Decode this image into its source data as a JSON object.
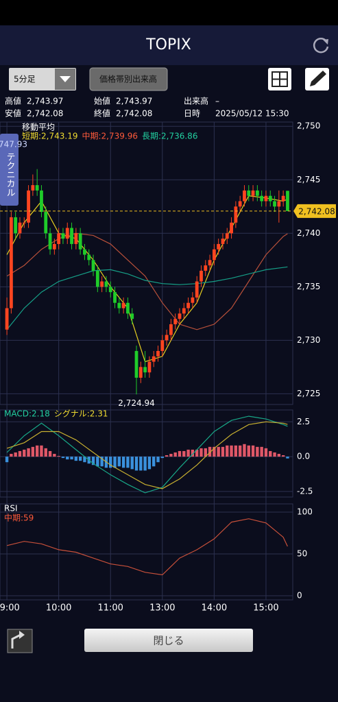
{
  "header": {
    "title": "TOPIX"
  },
  "toolbar": {
    "period": "5分足",
    "volume_button": "価格帯別出来高"
  },
  "info": [
    {
      "label": "高値",
      "value": "2,743.97"
    },
    {
      "label": "始値",
      "value": "2,743.97"
    },
    {
      "label": "出来高",
      "value": "–"
    },
    {
      "label": "安値",
      "value": "2,742.08"
    },
    {
      "label": "終値",
      "value": "2,742.08"
    },
    {
      "label": "日時",
      "value": "2025/05/12 15:30"
    }
  ],
  "side_tab": {
    "label": "テクニカル",
    "partial_value": "747.93"
  },
  "footer": {
    "close_button": "閉じる"
  },
  "chart_data": [
    {
      "type": "candlestick",
      "title": "移動平均",
      "xlim": [
        -1.6,
        66.2
      ],
      "ylim": [
        2724,
        2750.4
      ],
      "yticks": [
        {
          "value": 2725,
          "label": "2,725"
        },
        {
          "value": 2730,
          "label": "2,730"
        },
        {
          "value": 2735,
          "label": "2,735"
        },
        {
          "value": 2740,
          "label": "2,740"
        },
        {
          "value": 2745,
          "label": "2,745"
        },
        {
          "value": 2750,
          "label": "2,750"
        }
      ],
      "up_color": "#ff4520",
      "down_color": "#1fcc2a",
      "candles": [
        [
          2731,
          2734,
          2730.5,
          2733
        ],
        [
          2733,
          2742,
          2732.5,
          2741.5
        ],
        [
          2741.5,
          2742,
          2739.5,
          2740
        ],
        [
          2740,
          2741.5,
          2739.5,
          2741
        ],
        [
          2741,
          2741.5,
          2740.5,
          2741
        ],
        [
          2741,
          2744.5,
          2740.5,
          2744
        ],
        [
          2744,
          2745.5,
          2743.5,
          2744.5
        ],
        [
          2744.5,
          2746,
          2743.5,
          2744
        ],
        [
          2744,
          2744.5,
          2741.5,
          2742
        ],
        [
          2742,
          2742.5,
          2739.5,
          2740
        ],
        [
          2740,
          2740.5,
          2738,
          2738.5
        ],
        [
          2738.5,
          2739.5,
          2738,
          2739
        ],
        [
          2739,
          2740.5,
          2738.5,
          2740
        ],
        [
          2740,
          2740.5,
          2739,
          2739.5
        ],
        [
          2739.5,
          2741,
          2739,
          2740.5
        ],
        [
          2740.5,
          2741,
          2738.5,
          2739
        ],
        [
          2739,
          2740.5,
          2738.5,
          2740
        ],
        [
          2740,
          2740.5,
          2738,
          2738.5
        ],
        [
          2738.5,
          2739,
          2737.5,
          2738
        ],
        [
          2738,
          2738.5,
          2737,
          2737.5
        ],
        [
          2737.5,
          2738,
          2736,
          2736.5
        ],
        [
          2736.5,
          2737,
          2734.5,
          2735
        ],
        [
          2735,
          2736,
          2734.5,
          2735.5
        ],
        [
          2735.5,
          2736,
          2734.5,
          2735
        ],
        [
          2735,
          2735.5,
          2734,
          2734.5
        ],
        [
          2734.5,
          2735,
          2733,
          2733.5
        ],
        [
          2733.5,
          2734,
          2732.5,
          2733
        ],
        [
          2733,
          2734,
          2732.5,
          2733.5
        ],
        [
          2733.5,
          2734,
          2732,
          2732.5
        ],
        [
          2732.5,
          2733,
          2731.5,
          2732
        ],
        [
          2729,
          2729.5,
          2724.94,
          2726.5
        ],
        [
          2726.5,
          2728,
          2726,
          2727.5
        ],
        [
          2727.5,
          2729,
          2726.5,
          2727
        ],
        [
          2727,
          2728.5,
          2726.5,
          2728
        ],
        [
          2728,
          2729,
          2727.5,
          2728.5
        ],
        [
          2728.5,
          2729.5,
          2728,
          2729
        ],
        [
          2729,
          2730.5,
          2728.5,
          2730
        ],
        [
          2730,
          2731,
          2729.5,
          2730.5
        ],
        [
          2730.5,
          2732,
          2730,
          2731.5
        ],
        [
          2731.5,
          2732.5,
          2731,
          2732
        ],
        [
          2732,
          2733,
          2731.5,
          2732.5
        ],
        [
          2732.5,
          2733.5,
          2732,
          2733
        ],
        [
          2733,
          2734,
          2732.5,
          2733.5
        ],
        [
          2733.5,
          2734.5,
          2733,
          2734
        ],
        [
          2734,
          2736,
          2733.5,
          2735.5
        ],
        [
          2735.5,
          2737,
          2735,
          2736.5
        ],
        [
          2736.5,
          2737.5,
          2736,
          2737
        ],
        [
          2737,
          2738,
          2736.5,
          2737.5
        ],
        [
          2737.5,
          2739,
          2737,
          2738.5
        ],
        [
          2738.5,
          2739.5,
          2738,
          2739
        ],
        [
          2739,
          2740,
          2738.5,
          2739.5
        ],
        [
          2739.5,
          2740.5,
          2739,
          2740
        ],
        [
          2740,
          2741.5,
          2739.5,
          2741
        ],
        [
          2741,
          2743,
          2740.5,
          2742.5
        ],
        [
          2742.5,
          2743.5,
          2742,
          2743
        ],
        [
          2743,
          2744.5,
          2742.5,
          2744
        ],
        [
          2744,
          2744.5,
          2743,
          2743.5
        ],
        [
          2743.5,
          2744.5,
          2743,
          2744
        ],
        [
          2744,
          2744.5,
          2743,
          2743.5
        ],
        [
          2743.5,
          2744,
          2742.5,
          2743
        ],
        [
          2743,
          2744,
          2742.5,
          2743.5
        ],
        [
          2743.5,
          2744,
          2742.5,
          2743
        ],
        [
          2743,
          2743.5,
          2742,
          2742.5
        ],
        [
          2742.5,
          2744,
          2741,
          2743
        ],
        [
          2743,
          2744,
          2742.5,
          2743.5
        ],
        [
          2743.97,
          2743.97,
          2742.08,
          2742.08
        ]
      ],
      "line_x": [
        0,
        4,
        8,
        12,
        16,
        20,
        24,
        28,
        32,
        36,
        40,
        44,
        48,
        52,
        56,
        60,
        64,
        65
      ],
      "series": [
        {
          "legend": "短期:2,743.19",
          "color": "#e8d020",
          "legend_color": "#f0dc30",
          "values": [
            2738,
            2741,
            2743,
            2740,
            2739.5,
            2737.5,
            2735,
            2733,
            2728,
            2728.5,
            2731.5,
            2733.5,
            2737.5,
            2740.5,
            2743.5,
            2743.3,
            2743,
            2743.19
          ]
        },
        {
          "legend": "中期:2,739.96",
          "color": "#b8503a",
          "legend_color": "#ff5a3a",
          "values": [
            2736,
            2737,
            2738.5,
            2739.5,
            2740,
            2739.8,
            2739,
            2737.5,
            2736,
            2733.5,
            2731.5,
            2731,
            2731.5,
            2733,
            2735.5,
            2738,
            2739.7,
            2739.96
          ]
        },
        {
          "legend": "長期:2,736.86",
          "color": "#16a088",
          "legend_color": "#22d0a0",
          "values": [
            2731,
            2733,
            2734.5,
            2735.5,
            2736,
            2736.5,
            2736.6,
            2736.2,
            2735.6,
            2735.3,
            2735.2,
            2735.3,
            2735.5,
            2735.8,
            2736.2,
            2736.6,
            2736.8,
            2736.86
          ]
        }
      ],
      "last": {
        "value": 2742.08,
        "label": "2,742.08",
        "color": "#f0c020"
      },
      "low_marker": {
        "index": 30,
        "value": 2724.94,
        "label": "2,724.94"
      }
    },
    {
      "type": "macd",
      "xlim": [
        -1.6,
        66.2
      ],
      "ylim": [
        -2.9,
        3.35
      ],
      "yticks": [
        2.5,
        {
          "value": 0,
          "label": "0.0"
        },
        -2.5
      ],
      "pos_color": "#e05868",
      "neg_color": "#3a90dc",
      "histogram": [
        -0.4,
        0.2,
        0.3,
        0.4,
        0.5,
        0.6,
        0.7,
        0.8,
        0.8,
        0.6,
        0.4,
        0.2,
        0.05,
        -0.1,
        -0.2,
        -0.2,
        -0.3,
        -0.3,
        -0.4,
        -0.5,
        -0.6,
        -0.7,
        -0.7,
        -0.8,
        -0.8,
        -0.8,
        -0.7,
        -0.8,
        -0.8,
        -0.9,
        -1.0,
        -1.0,
        -1.0,
        -0.9,
        -0.7,
        -0.4,
        -0.1,
        0.1,
        0.2,
        0.3,
        0.4,
        0.4,
        0.5,
        0.5,
        0.5,
        0.6,
        0.6,
        0.7,
        0.7,
        0.7,
        0.7,
        0.8,
        0.8,
        0.8,
        0.8,
        0.9,
        0.8,
        0.8,
        0.7,
        0.7,
        0.6,
        0.4,
        0.3,
        0.2,
        0.1,
        -0.13
      ],
      "line_x": [
        0,
        4,
        8,
        12,
        16,
        20,
        24,
        28,
        32,
        36,
        40,
        44,
        48,
        52,
        56,
        60,
        64,
        65
      ],
      "series": [
        {
          "legend": "MACD:2.18",
          "color": "#18a888",
          "legend_color": "#22d0a0",
          "values": [
            0.3,
            1.5,
            2.4,
            1.5,
            0.5,
            -0.5,
            -1.3,
            -2.0,
            -2.6,
            -2.2,
            -0.8,
            0.5,
            1.8,
            2.6,
            2.9,
            2.7,
            2.3,
            2.18
          ]
        },
        {
          "legend": "シグナル:2.31",
          "color": "#c8b030",
          "legend_color": "#f0dc30",
          "values": [
            0.6,
            1.0,
            1.8,
            1.8,
            1.2,
            0.3,
            -0.6,
            -1.3,
            -2.0,
            -2.3,
            -1.6,
            -0.6,
            0.6,
            1.6,
            2.3,
            2.5,
            2.4,
            2.31
          ]
        }
      ]
    },
    {
      "type": "line",
      "title": "RSI",
      "xlim": [
        -1.6,
        66.2
      ],
      "ylim": [
        -4.9,
        109.8
      ],
      "yticks": [
        0,
        50,
        100
      ],
      "xticks": [
        {
          "value": 0,
          "label": "09:00"
        },
        {
          "value": 12,
          "label": "10:00"
        },
        {
          "value": 24,
          "label": "11:00"
        },
        {
          "value": 36,
          "label": "13:00"
        },
        {
          "value": 48,
          "label": "14:00"
        },
        {
          "value": 60,
          "label": "15:00"
        }
      ],
      "line_x": [
        0,
        4,
        8,
        12,
        16,
        20,
        24,
        28,
        32,
        36,
        40,
        44,
        48,
        52,
        56,
        60,
        64,
        65
      ],
      "series": [
        {
          "legend": "中期:59",
          "color": "#c8503a",
          "legend_color": "#ff5a3a",
          "values": [
            60,
            65,
            62,
            55,
            52,
            45,
            38,
            35,
            28,
            25,
            45,
            55,
            68,
            88,
            92,
            87,
            70,
            59
          ]
        }
      ]
    }
  ]
}
